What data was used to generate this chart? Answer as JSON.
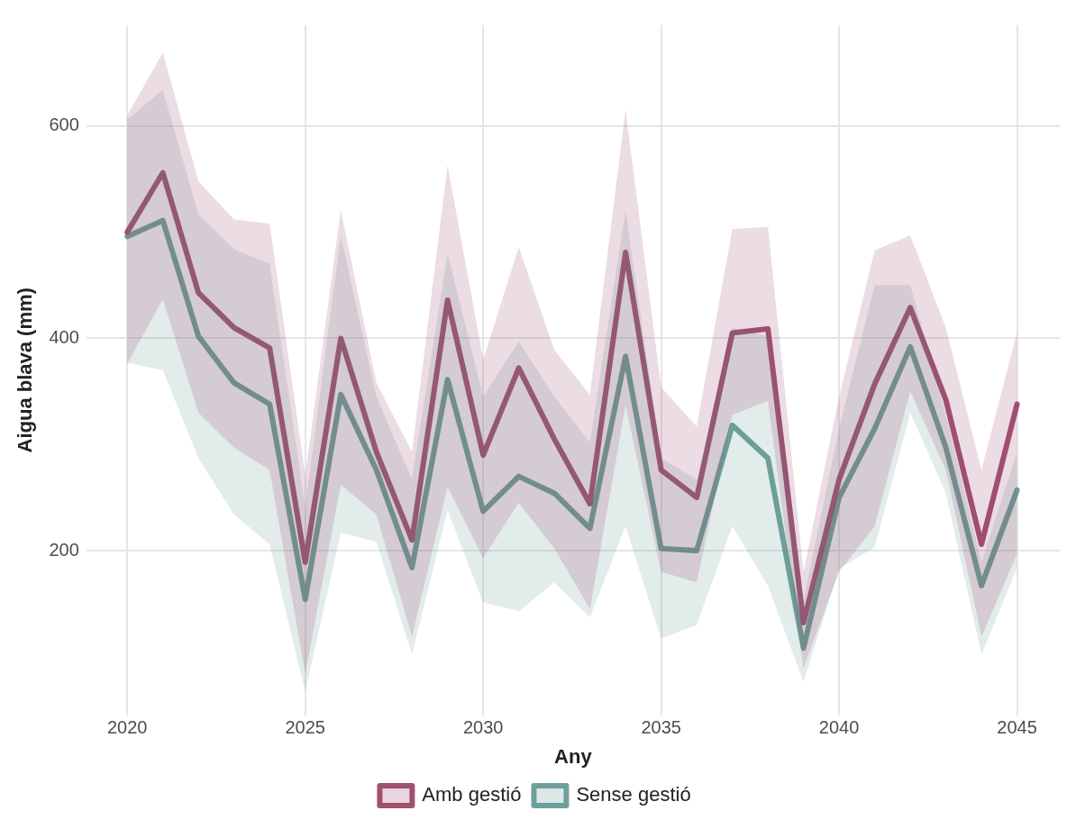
{
  "chart_data": {
    "type": "line",
    "xlabel": "Any",
    "ylabel": "Aigua blava (mm)",
    "x": [
      2020,
      2021,
      2022,
      2023,
      2024,
      2025,
      2026,
      2027,
      2028,
      2029,
      2030,
      2031,
      2032,
      2033,
      2034,
      2035,
      2036,
      2037,
      2038,
      2039,
      2040,
      2041,
      2042,
      2043,
      2044,
      2045
    ],
    "series": [
      {
        "name": "Amb gestió",
        "color": "#973f64",
        "values": [
          500,
          556,
          443,
          410,
          391,
          189,
          400,
          293,
          210,
          436,
          290,
          372,
          305,
          244,
          481,
          276,
          250,
          405,
          409,
          132,
          267,
          357,
          429,
          342,
          206,
          338
        ],
        "lower": [
          376,
          437,
          330,
          297,
          276,
          84,
          262,
          234,
          119,
          260,
          193,
          245,
          202,
          145,
          337,
          180,
          170,
          328,
          341,
          89,
          180,
          223,
          350,
          276,
          119,
          197
        ],
        "upper": [
          610,
          669,
          548,
          512,
          508,
          271,
          521,
          358,
          293,
          563,
          380,
          486,
          389,
          347,
          615,
          354,
          317,
          503,
          505,
          180,
          345,
          483,
          497,
          410,
          276,
          406
        ]
      },
      {
        "name": "Sense gestió",
        "color": "#5f978f",
        "values": [
          496,
          511,
          402,
          358,
          338,
          154,
          347,
          276,
          184,
          361,
          237,
          270,
          254,
          221,
          383,
          202,
          200,
          318,
          287,
          108,
          250,
          315,
          392,
          297,
          167,
          257
        ],
        "lower": [
          377,
          370,
          287,
          234,
          206,
          67,
          217,
          208,
          102,
          238,
          151,
          143,
          170,
          137,
          223,
          117,
          130,
          223,
          167,
          76,
          183,
          203,
          330,
          254,
          102,
          184
        ],
        "upper": [
          606,
          634,
          517,
          484,
          470,
          241,
          497,
          345,
          267,
          480,
          345,
          397,
          345,
          302,
          521,
          287,
          267,
          410,
          402,
          154,
          315,
          450,
          450,
          328,
          189,
          293
        ]
      }
    ],
    "xlim": [
      2018.85,
      2046.2
    ],
    "ylim": [
      45,
      695
    ],
    "xticks": [
      2020,
      2025,
      2030,
      2035,
      2040,
      2045
    ],
    "yticks": [
      200,
      400,
      600
    ],
    "grid": true,
    "legend": "bottom",
    "line_style": "solid",
    "marker": "none"
  }
}
